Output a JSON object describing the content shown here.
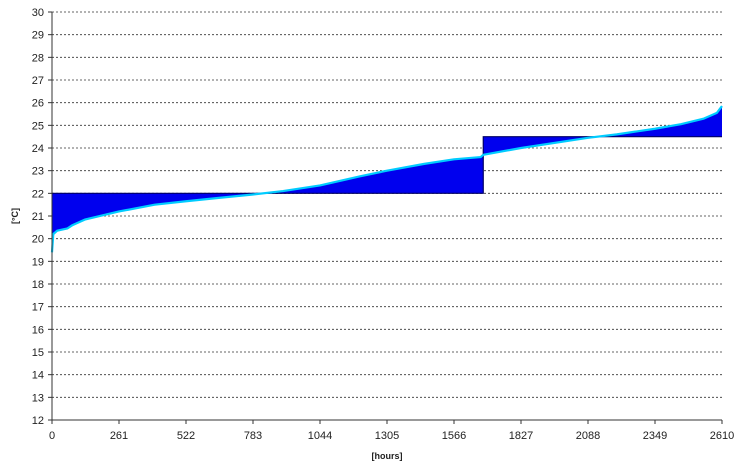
{
  "chart_data": {
    "type": "area",
    "xlabel": "[hours]",
    "ylabel": "[°C]",
    "xlim": [
      0,
      2610
    ],
    "ylim": [
      12,
      30
    ],
    "x_ticks": [
      0,
      261,
      522,
      783,
      1044,
      1305,
      1566,
      1827,
      2088,
      2349,
      2610
    ],
    "y_ticks": [
      12,
      13,
      14,
      15,
      16,
      17,
      18,
      19,
      20,
      21,
      22,
      23,
      24,
      25,
      26,
      27,
      28,
      29,
      30
    ],
    "grid": true,
    "legend": "none",
    "colors": {
      "fill": "#0000ee",
      "curve": "#00ccff"
    },
    "series": [
      {
        "role": "sorted-temperature-curve",
        "x": [
          0,
          5,
          20,
          60,
          80,
          130,
          261,
          400,
          522,
          650,
          783,
          900,
          1044,
          1200,
          1305,
          1450,
          1566,
          1670,
          1680,
          1827,
          2088,
          2200,
          2349,
          2450,
          2540,
          2590,
          2610
        ],
        "y": [
          19.4,
          20.2,
          20.35,
          20.45,
          20.6,
          20.85,
          21.2,
          21.5,
          21.65,
          21.8,
          21.95,
          22.1,
          22.35,
          22.75,
          23.0,
          23.3,
          23.5,
          23.6,
          23.7,
          24.0,
          24.45,
          24.6,
          24.85,
          25.05,
          25.3,
          25.55,
          25.85
        ]
      },
      {
        "role": "setpoint-step",
        "x": [
          0,
          1680,
          1680,
          2610
        ],
        "y": [
          22.0,
          22.0,
          24.5,
          24.5
        ]
      }
    ]
  }
}
